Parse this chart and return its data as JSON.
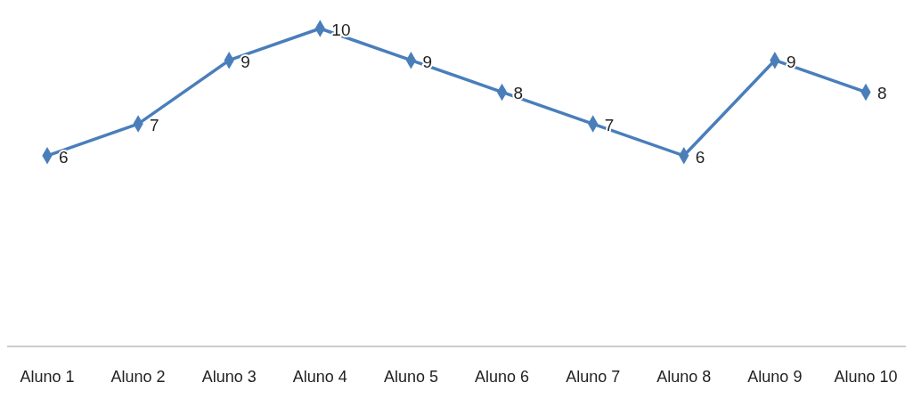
{
  "chart_data": {
    "type": "line",
    "categories": [
      "Aluno 1",
      "Aluno 2",
      "Aluno 3",
      "Aluno 4",
      "Aluno 5",
      "Aluno 6",
      "Aluno 7",
      "Aluno 8",
      "Aluno 9",
      "Aluno 10"
    ],
    "series": [
      {
        "color": "#4a7ebb",
        "values": [
          6,
          7,
          9,
          10,
          9,
          8,
          7,
          6,
          9,
          8
        ]
      }
    ],
    "data_labels": true,
    "marker": "diamond",
    "line_style": "solid"
  }
}
